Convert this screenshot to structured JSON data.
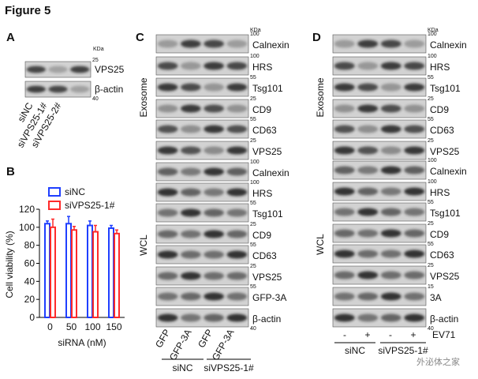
{
  "figure_title": "Figure 5",
  "watermark": "外泌体之家",
  "panel_a": {
    "label": "A",
    "kda": "KDa",
    "rows": [
      {
        "name": "VPS25",
        "marker": 25
      },
      {
        "name": "β-actin",
        "marker": 40
      }
    ],
    "lanes": [
      "siNC",
      "siVPS25-1#",
      "siVPS25-2#"
    ]
  },
  "chart_data": {
    "type": "bar",
    "panel_label": "B",
    "ylabel": "Cell viability (%)",
    "xlabel": "siRNA (nM)",
    "categories": [
      "0",
      "50",
      "100",
      "150"
    ],
    "series": [
      {
        "name": "siNC",
        "color": "#1f3fff",
        "values": [
          104,
          104,
          102,
          99
        ],
        "errors": [
          3,
          8,
          5,
          3
        ]
      },
      {
        "name": "siVPS25-1#",
        "color": "#ff2a2a",
        "values": [
          100,
          97,
          95,
          93
        ],
        "errors": [
          9,
          4,
          7,
          4
        ]
      }
    ],
    "ylim": [
      0,
      120
    ],
    "yticks": [
      0,
      20,
      40,
      60,
      80,
      100,
      120
    ]
  },
  "panel_c": {
    "label": "C",
    "kda": "KDa",
    "groups": [
      {
        "name": "Exosome",
        "rows": [
          {
            "name": "Calnexin",
            "marker": 100
          },
          {
            "name": "HRS",
            "marker": 100
          },
          {
            "name": "Tsg101",
            "marker": 55
          },
          {
            "name": "CD9",
            "marker": 25
          },
          {
            "name": "CD63",
            "marker": 55
          },
          {
            "name": "VPS25",
            "marker": 25
          }
        ]
      },
      {
        "name": "WCL",
        "rows": [
          {
            "name": "Calnexin",
            "marker": 100
          },
          {
            "name": "HRS",
            "marker": 100
          },
          {
            "name": "Tsg101",
            "marker": 55
          },
          {
            "name": "CD9",
            "marker": 25
          },
          {
            "name": "CD63",
            "marker": 55
          },
          {
            "name": "VPS25",
            "marker": 25
          },
          {
            "name": "GFP-3A",
            "marker": 55
          },
          {
            "name": "β-actin",
            "marker": 40
          }
        ]
      }
    ],
    "lanes": [
      "GFP",
      "GFP-3A",
      "GFP",
      "GFP-3A"
    ],
    "conditions": [
      "siNC",
      "siVPS25-1#"
    ]
  },
  "panel_d": {
    "label": "D",
    "kda": "KDa",
    "groups": [
      {
        "name": "Exosome",
        "rows": [
          {
            "name": "Calnexin",
            "marker": 100
          },
          {
            "name": "HRS",
            "marker": 100
          },
          {
            "name": "Tsg101",
            "marker": 55
          },
          {
            "name": "CD9",
            "marker": 25
          },
          {
            "name": "CD63",
            "marker": 55
          },
          {
            "name": "VPS25",
            "marker": 25
          }
        ]
      },
      {
        "name": "WCL",
        "rows": [
          {
            "name": "Calnexin",
            "marker": 100
          },
          {
            "name": "HRS",
            "marker": 100
          },
          {
            "name": "Tsg101",
            "marker": 55
          },
          {
            "name": "CD9",
            "marker": 25
          },
          {
            "name": "CD63",
            "marker": 55
          },
          {
            "name": "VPS25",
            "marker": 25
          },
          {
            "name": "3A",
            "marker": 15
          },
          {
            "name": "β-actin",
            "marker": 40
          }
        ]
      }
    ],
    "lanes": [
      "-",
      "+",
      "-",
      "+"
    ],
    "treatment": "EV71",
    "conditions": [
      "siNC",
      "siVPS25-1#"
    ]
  }
}
